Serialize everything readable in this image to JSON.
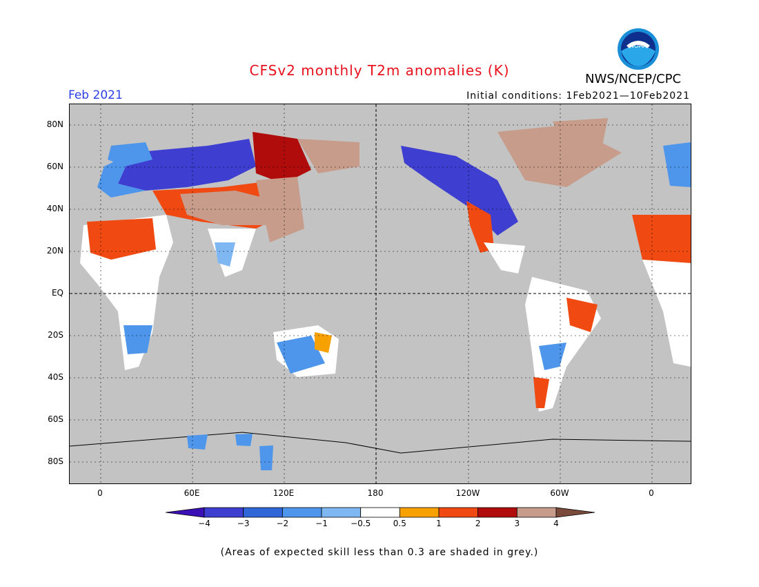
{
  "title": "CFSv2 monthly T2m anomalies (K)",
  "organization": "NWS/NCEP/CPC",
  "logo_text": "NOAA",
  "valid_period": "Feb 2021",
  "initial_conditions": "Initial conditions: 1Feb2021—10Feb2021",
  "lat_labels": [
    "80N",
    "60N",
    "40N",
    "20N",
    "EQ",
    "20S",
    "40S",
    "60S",
    "80S"
  ],
  "lon_labels": [
    "0",
    "60E",
    "120E",
    "180",
    "120W",
    "60W",
    "0"
  ],
  "colorbar": {
    "tick_labels": [
      "−4",
      "−3",
      "−2",
      "−1",
      "−0.5",
      "0.5",
      "1",
      "2",
      "3",
      "4"
    ],
    "colors": [
      "#3b10b4",
      "#3e3fd0",
      "#2f66d8",
      "#4d96eb",
      "#7fb7f2",
      "#ffffff",
      "#f7a100",
      "#f04a12",
      "#b10c0c",
      "#c79c8a",
      "#7a4a3a"
    ]
  },
  "footnote": "(Areas of expected skill less than 0.3 are shaded in grey.)"
}
